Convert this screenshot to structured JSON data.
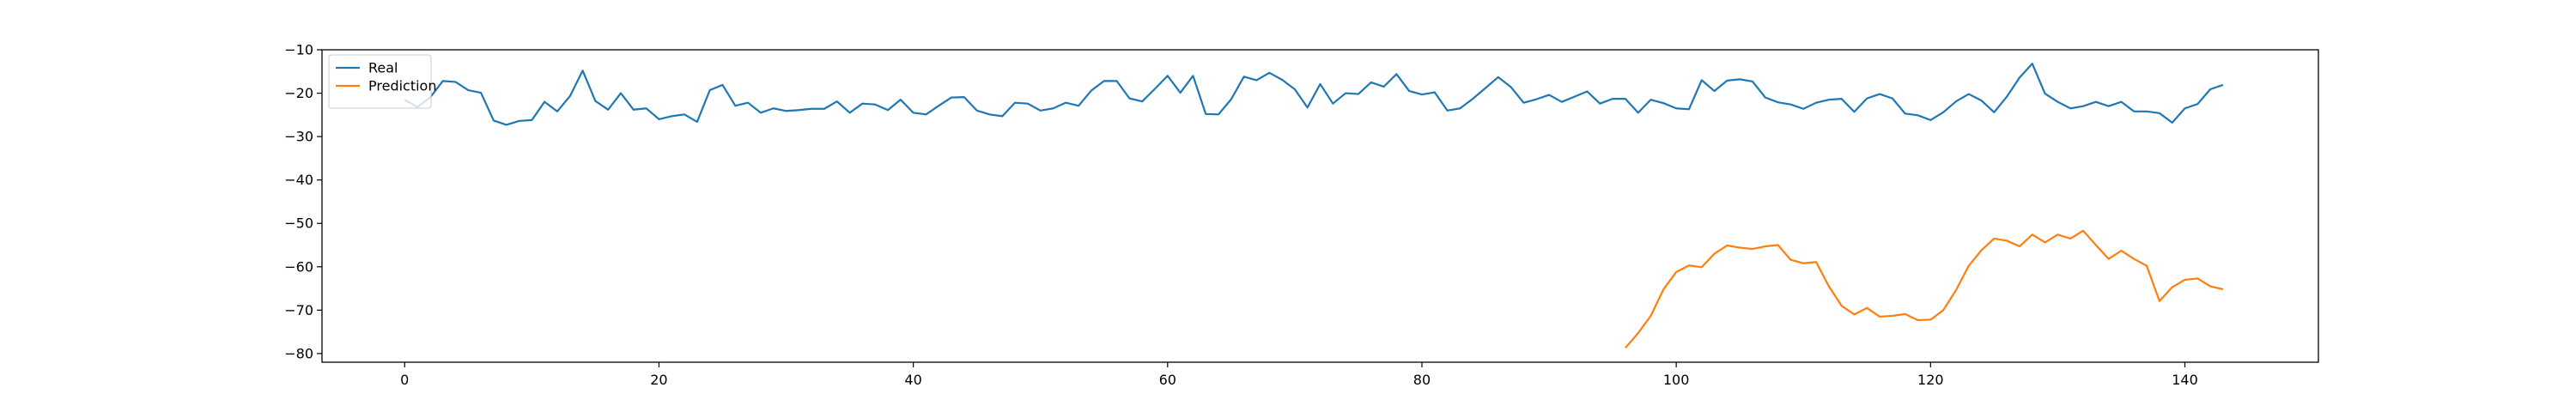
{
  "chart_data": {
    "type": "line",
    "title": "",
    "xlabel": "",
    "ylabel": "",
    "xlim": [
      -6.5,
      150.5
    ],
    "ylim": [
      -82,
      -10
    ],
    "xticks": [
      0,
      20,
      40,
      60,
      80,
      100,
      120,
      140
    ],
    "yticks": [
      -10,
      -20,
      -30,
      -40,
      -50,
      -60,
      -70,
      -80
    ],
    "grid": false,
    "legend_position": "top-left",
    "series": [
      {
        "name": "Real",
        "color": "#1f77b4",
        "x_start": 0,
        "values": [
          -21.5,
          -23.2,
          -21.0,
          -17.2,
          -17.4,
          -19.3,
          -19.9,
          -26.3,
          -27.3,
          -26.4,
          -26.2,
          -22.0,
          -24.2,
          -20.7,
          -14.8,
          -21.8,
          -23.8,
          -20.0,
          -23.8,
          -23.5,
          -26.0,
          -25.3,
          -24.9,
          -26.6,
          -19.3,
          -18.1,
          -22.9,
          -22.2,
          -24.5,
          -23.5,
          -24.1,
          -23.9,
          -23.6,
          -23.6,
          -21.9,
          -24.5,
          -22.4,
          -22.6,
          -23.9,
          -21.5,
          -24.5,
          -24.9,
          -22.9,
          -21.0,
          -20.9,
          -24.0,
          -24.9,
          -25.3,
          -22.2,
          -22.4,
          -24.0,
          -23.5,
          -22.2,
          -22.9,
          -19.4,
          -17.2,
          -17.2,
          -21.2,
          -21.9,
          -19.0,
          -16.0,
          -19.9,
          -16.0,
          -24.8,
          -24.9,
          -21.4,
          -16.2,
          -17.0,
          -15.3,
          -16.9,
          -19.1,
          -23.3,
          -17.9,
          -22.4,
          -20.0,
          -20.2,
          -17.5,
          -18.5,
          -15.6,
          -19.5,
          -20.3,
          -19.8,
          -24.0,
          -23.5,
          -21.3,
          -18.8,
          -16.3,
          -18.6,
          -22.2,
          -21.4,
          -20.4,
          -22.0,
          -20.8,
          -19.6,
          -22.4,
          -21.3,
          -21.3,
          -24.5,
          -21.5,
          -22.3,
          -23.5,
          -23.7,
          -17.0,
          -19.5,
          -17.1,
          -16.8,
          -17.3,
          -21.0,
          -22.1,
          -22.6,
          -23.6,
          -22.2,
          -21.5,
          -21.3,
          -24.3,
          -21.2,
          -20.2,
          -21.2,
          -24.7,
          -25.1,
          -26.2,
          -24.4,
          -21.9,
          -20.2,
          -21.7,
          -24.4,
          -20.8,
          -16.4,
          -13.2,
          -20.1,
          -22.0,
          -23.5,
          -23.0,
          -22.0,
          -23.0,
          -22.0,
          -24.2,
          -24.2,
          -24.6,
          -26.8,
          -23.5,
          -22.5,
          -19.1,
          -18.1
        ]
      },
      {
        "name": "Prediction",
        "color": "#ff7f0e",
        "x_start": 96,
        "values": [
          -78.7,
          -75.3,
          -71.3,
          -65.2,
          -61.2,
          -59.7,
          -60.1,
          -57.0,
          -55.1,
          -55.6,
          -55.9,
          -55.3,
          -55.0,
          -58.4,
          -59.2,
          -58.9,
          -64.5,
          -69.0,
          -71.0,
          -69.5,
          -71.5,
          -71.3,
          -70.9,
          -72.3,
          -72.2,
          -70.0,
          -65.4,
          -59.8,
          -56.2,
          -53.5,
          -54.0,
          -55.3,
          -52.6,
          -54.4,
          -52.6,
          -53.5,
          -51.7,
          -55.0,
          -58.2,
          -56.3,
          -58.2,
          -59.8,
          -67.9,
          -64.7,
          -63.0,
          -62.7,
          -64.5,
          -65.2
        ]
      }
    ]
  }
}
